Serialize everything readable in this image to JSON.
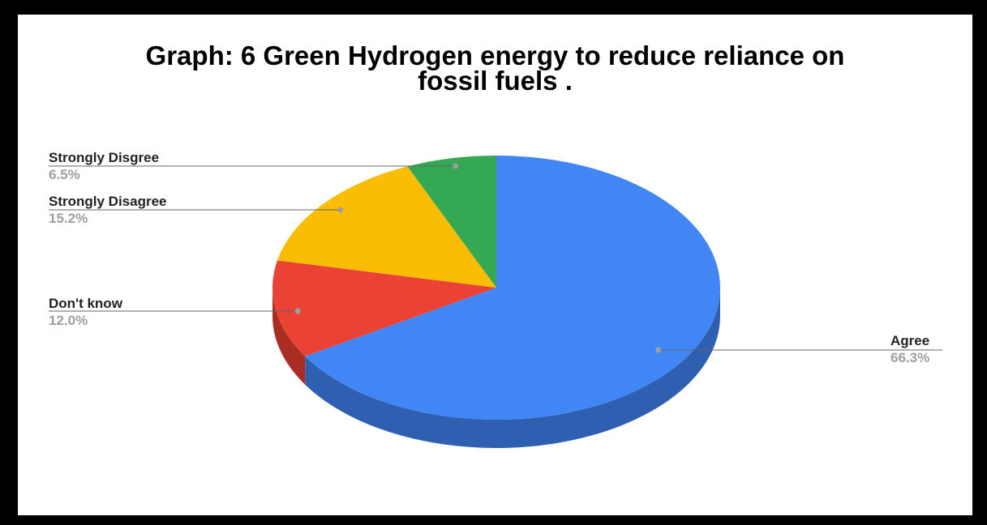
{
  "chart_data": {
    "type": "pie",
    "title_line1": "Graph: 6 Green Hydrogen energy  to reduce reliance on",
    "title_line2": "fossil fuels .",
    "labels": [
      "Agree",
      "Don't know",
      "Strongly Disagree",
      "Strongly Disgree"
    ],
    "values": [
      66.3,
      12.0,
      15.2,
      6.5
    ],
    "value_labels": [
      "66.3%",
      "12.0%",
      "15.2%",
      "6.5%"
    ],
    "colors": [
      "#4285f4",
      "#ea4335",
      "#fbbc04",
      "#34a853"
    ],
    "side_colors": [
      "#2f5fb0",
      "#a92d23",
      "#b98a00",
      "#23793a"
    ],
    "style": "3d",
    "legend": "none (labels with leader lines)"
  }
}
